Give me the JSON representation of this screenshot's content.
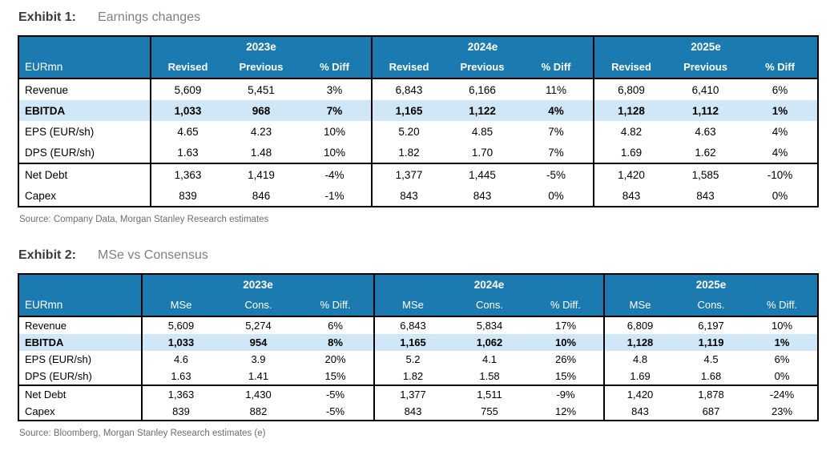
{
  "colors": {
    "header_bg": "#1b7bb0",
    "highlight_bg": "#cfe7f7",
    "border": "#000000",
    "title_dark": "#3c3c3c",
    "title_muted": "#808080",
    "title_muted2": "#6e6e6e"
  },
  "exhibit1": {
    "label": "Exhibit 1:",
    "title": "Earnings changes",
    "unit_label": "EURmn",
    "col_groups": [
      "2023e",
      "2024e",
      "2025e"
    ],
    "sub_headers": [
      "Revised",
      "Previous",
      "% Diff"
    ],
    "rows": [
      {
        "label": "Revenue",
        "values": [
          "5,609",
          "5,451",
          "3%",
          "6,843",
          "6,166",
          "11%",
          "6,809",
          "6,410",
          "6%"
        ]
      },
      {
        "label": "EBITDA",
        "values": [
          "1,033",
          "968",
          "7%",
          "1,165",
          "1,122",
          "4%",
          "1,128",
          "1,112",
          "1%"
        ],
        "highlight": true
      },
      {
        "label": "EPS (EUR/sh)",
        "values": [
          "4.65",
          "4.23",
          "10%",
          "5.20",
          "4.85",
          "7%",
          "4.82",
          "4.63",
          "4%"
        ]
      },
      {
        "label": "DPS (EUR/sh)",
        "values": [
          "1.63",
          "1.48",
          "10%",
          "1.82",
          "1.70",
          "7%",
          "1.69",
          "1.62",
          "4%"
        ]
      },
      {
        "label": "Net Debt",
        "values": [
          "1,363",
          "1,419",
          "-4%",
          "1,377",
          "1,445",
          "-5%",
          "1,420",
          "1,585",
          "-10%"
        ],
        "section_start": true
      },
      {
        "label": "Capex",
        "values": [
          "839",
          "846",
          "-1%",
          "843",
          "843",
          "0%",
          "843",
          "843",
          "0%"
        ]
      }
    ],
    "source": "Source: Company Data, Morgan Stanley Research estimates"
  },
  "exhibit2": {
    "label": "Exhibit 2:",
    "title": "MSe vs Consensus",
    "unit_label": "EURmn",
    "col_groups": [
      "2023e",
      "2024e",
      "2025e"
    ],
    "sub_headers": [
      "MSe",
      "Cons.",
      "% Diff."
    ],
    "rows": [
      {
        "label": "Revenue",
        "values": [
          "5,609",
          "5,274",
          "6%",
          "6,843",
          "5,834",
          "17%",
          "6,809",
          "6,197",
          "10%"
        ]
      },
      {
        "label": "EBITDA",
        "values": [
          "1,033",
          "954",
          "8%",
          "1,165",
          "1,062",
          "10%",
          "1,128",
          "1,119",
          "1%"
        ],
        "highlight": true
      },
      {
        "label": "EPS (EUR/sh)",
        "values": [
          "4.6",
          "3.9",
          "20%",
          "5.2",
          "4.1",
          "26%",
          "4.8",
          "4.5",
          "6%"
        ]
      },
      {
        "label": "DPS (EUR/sh)",
        "values": [
          "1.63",
          "1.41",
          "15%",
          "1.82",
          "1.58",
          "15%",
          "1.69",
          "1.68",
          "0%"
        ]
      },
      {
        "label": "Net Debt",
        "values": [
          "1,363",
          "1,430",
          "-5%",
          "1,377",
          "1,511",
          "-9%",
          "1,420",
          "1,878",
          "-24%"
        ],
        "section_start": true
      },
      {
        "label": "Capex",
        "values": [
          "839",
          "882",
          "-5%",
          "843",
          "755",
          "12%",
          "843",
          "687",
          "23%"
        ]
      }
    ],
    "source": "Source: Bloomberg, Morgan Stanley Research estimates (e)"
  }
}
